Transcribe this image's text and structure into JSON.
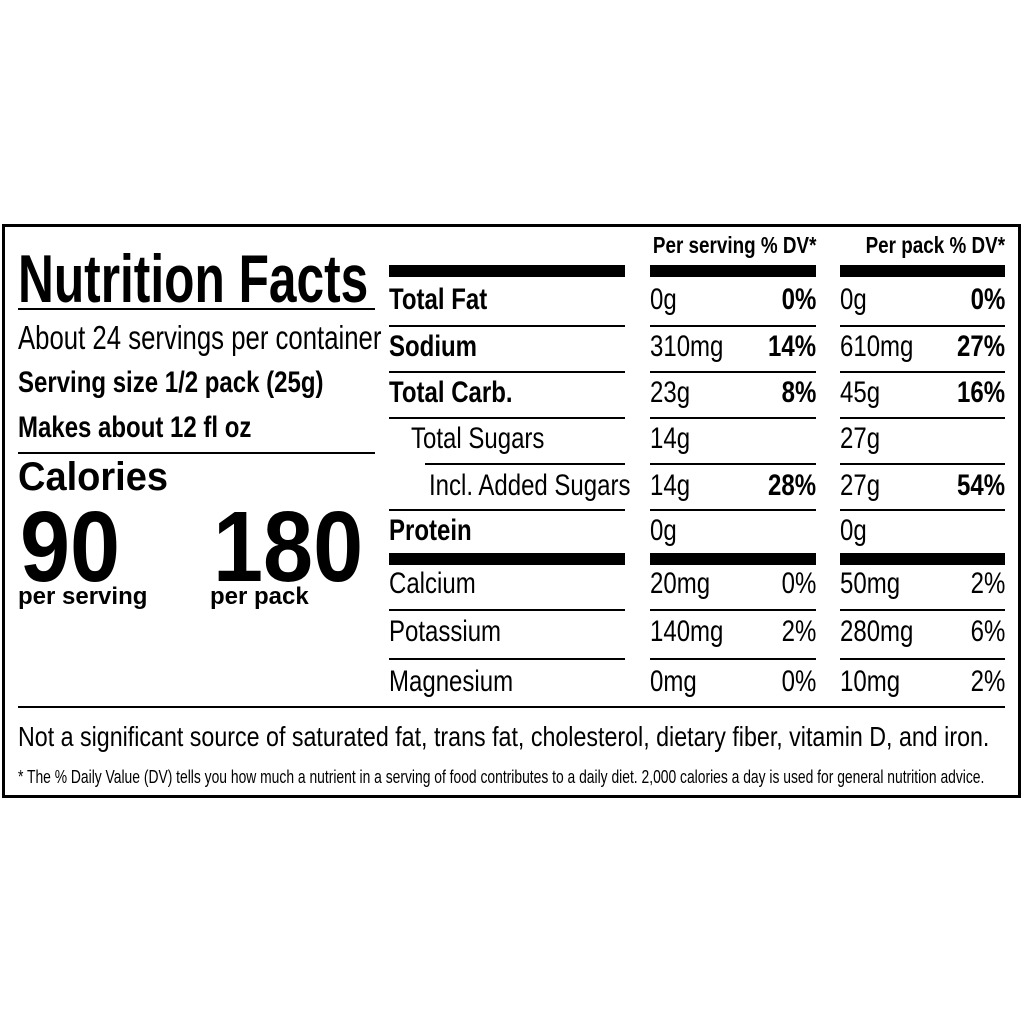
{
  "label": {
    "title": "Nutrition Facts",
    "servings_per_container": "About 24 servings per container",
    "serving_size": "Serving size 1/2 pack (25g)",
    "makes": "Makes about 12 fl oz",
    "calories_label": "Calories",
    "calories_per_serving": "90",
    "calories_per_serving_label": "per serving",
    "calories_per_pack": "180",
    "calories_per_pack_label": "per pack",
    "header_serving": "Per serving % DV*",
    "header_pack": "Per pack % DV*",
    "rows": [
      {
        "name": "Total Fat",
        "bold": true,
        "indent": 0,
        "serv_amt": "0g",
        "serv_dv": "0%",
        "pack_amt": "0g",
        "pack_dv": "0%"
      },
      {
        "name": "Sodium",
        "bold": true,
        "indent": 0,
        "serv_amt": "310mg",
        "serv_dv": "14%",
        "pack_amt": "610mg",
        "pack_dv": "27%"
      },
      {
        "name": "Total Carb.",
        "bold": true,
        "indent": 0,
        "serv_amt": "23g",
        "serv_dv": "8%",
        "pack_amt": "45g",
        "pack_dv": "16%"
      },
      {
        "name": "Total Sugars",
        "bold": false,
        "indent": 1,
        "serv_amt": "14g",
        "serv_dv": "",
        "pack_amt": "27g",
        "pack_dv": ""
      },
      {
        "name": "Incl. Added Sugars",
        "bold": false,
        "indent": 2,
        "serv_amt": "14g",
        "serv_dv": "28%",
        "pack_amt": "27g",
        "pack_dv": "54%"
      },
      {
        "name": "Protein",
        "bold": true,
        "indent": 0,
        "serv_amt": "0g",
        "serv_dv": "",
        "pack_amt": "0g",
        "pack_dv": ""
      }
    ],
    "minerals": [
      {
        "name": "Calcium",
        "serv_amt": "20mg",
        "serv_dv": "0%",
        "pack_amt": "50mg",
        "pack_dv": "2%"
      },
      {
        "name": "Potassium",
        "serv_amt": "140mg",
        "serv_dv": "2%",
        "pack_amt": "280mg",
        "pack_dv": "6%"
      },
      {
        "name": "Magnesium",
        "serv_amt": "0mg",
        "serv_dv": "0%",
        "pack_amt": "10mg",
        "pack_dv": "2%"
      }
    ],
    "not_significant": "Not a significant source of saturated fat, trans fat, cholesterol, dietary fiber, vitamin D, and iron.",
    "footnote": "* The % Daily Value (DV) tells you how much a nutrient in a serving of food contributes to a daily diet. 2,000 calories a day is used for general nutrition advice."
  }
}
